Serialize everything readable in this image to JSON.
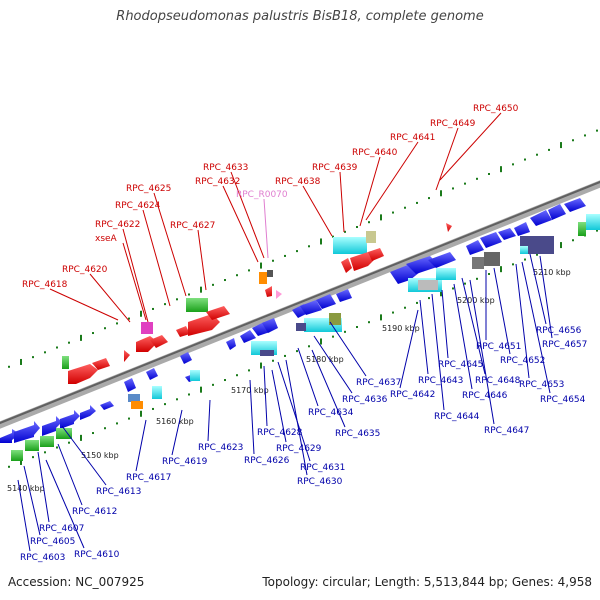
{
  "title": "Rhodopseudomonas palustris BisB18, complete genome",
  "footer": {
    "accession": "Accession: NC_007925",
    "topology": "Topology: circular; Length: 5,513,844 bp; Genes: 4,958"
  },
  "colors": {
    "backbone": "#8c8c8c",
    "top_labels": "#cc0000",
    "bottom_labels": "#0000aa",
    "rna_label": "#e07fd0",
    "tick": "#1a7a1a"
  },
  "kbp_labels": [
    "5140 kbp",
    "5150 kbp",
    "5160 kbp",
    "5170 kbp",
    "5180 kbp",
    "5190 kbp",
    "5200 kbp",
    "5210 kbp"
  ],
  "top_genes": [
    "RPC_4618",
    "RPC_4620",
    "xseA",
    "RPC_4622",
    "RPC_4624",
    "RPC_4625",
    "RPC_4627",
    "RPC_4632",
    "RPC_4633",
    "RPC_R0070",
    "RPC_4638",
    "RPC_4639",
    "RPC_4640",
    "RPC_4641",
    "RPC_4649",
    "RPC_4650"
  ],
  "bottom_genes": [
    "RPC_4603",
    "RPC_4605",
    "RPC_4607",
    "RPC_4610",
    "RPC_4612",
    "RPC_4613",
    "RPC_4617",
    "RPC_4619",
    "RPC_4623",
    "RPC_4626",
    "RPC_4628",
    "RPC_4629",
    "RPC_4630",
    "RPC_4631",
    "RPC_4634",
    "RPC_4635",
    "RPC_4636",
    "RPC_4637",
    "RPC_4642",
    "RPC_4643",
    "RPC_4644",
    "RPC_4645",
    "RPC_4646",
    "RPC_4647",
    "RPC_4648",
    "RPC_4651",
    "RPC_4652",
    "RPC_4653",
    "RPC_4654",
    "RPC_4656",
    "RPC_4657"
  ]
}
